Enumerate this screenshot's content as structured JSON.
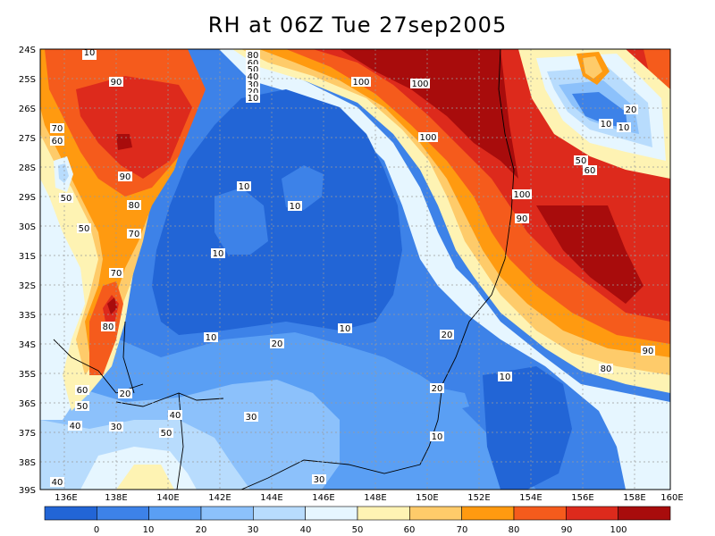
{
  "title": "RH at 06Z Tue 27sep2005",
  "map": {
    "lat_labels": [
      "24S",
      "25S",
      "26S",
      "27S",
      "28S",
      "29S",
      "30S",
      "31S",
      "32S",
      "33S",
      "34S",
      "35S",
      "36S",
      "37S",
      "38S",
      "39S"
    ],
    "lon_labels": [
      "136E",
      "138E",
      "140E",
      "142E",
      "144E",
      "146E",
      "148E",
      "150E",
      "152E",
      "154E",
      "156E",
      "158E",
      "160E"
    ],
    "contour_labels": [
      {
        "text": "90"
      },
      {
        "text": "90"
      },
      {
        "text": "80"
      },
      {
        "text": "70"
      },
      {
        "text": "60"
      },
      {
        "text": "50"
      },
      {
        "text": "50"
      },
      {
        "text": "70"
      },
      {
        "text": "70"
      },
      {
        "text": "80"
      },
      {
        "text": "60"
      },
      {
        "text": "50"
      },
      {
        "text": "40"
      },
      {
        "text": "30"
      },
      {
        "text": "20"
      },
      {
        "text": "40"
      },
      {
        "text": "50"
      },
      {
        "text": "80"
      },
      {
        "text": "60"
      },
      {
        "text": "50"
      },
      {
        "text": "40"
      },
      {
        "text": "30"
      },
      {
        "text": "20"
      },
      {
        "text": "10"
      },
      {
        "text": "100"
      },
      {
        "text": "100"
      },
      {
        "text": "100"
      },
      {
        "text": "100"
      },
      {
        "text": "90"
      },
      {
        "text": "10"
      },
      {
        "text": "10"
      },
      {
        "text": "20"
      },
      {
        "text": "60"
      },
      {
        "text": "50"
      },
      {
        "text": "10"
      },
      {
        "text": "10"
      },
      {
        "text": "10"
      },
      {
        "text": "10"
      },
      {
        "text": "10"
      },
      {
        "text": "20"
      },
      {
        "text": "20"
      },
      {
        "text": "10"
      },
      {
        "text": "10"
      },
      {
        "text": "30"
      },
      {
        "text": "30"
      },
      {
        "text": "80"
      },
      {
        "text": "90"
      },
      {
        "text": "40"
      },
      {
        "text": "20"
      },
      {
        "text": "10"
      }
    ]
  },
  "colorbar": {
    "labels": [
      "0",
      "10",
      "20",
      "30",
      "40",
      "50",
      "60",
      "70",
      "80",
      "90",
      "100"
    ],
    "colors": [
      "#2265d6",
      "#3d82e8",
      "#5a9ff4",
      "#8cc1fb",
      "#b8dcfd",
      "#e6f6ff",
      "#fef3b3",
      "#fecb6a",
      "#ff9a10",
      "#f55b1c",
      "#dd2a1c",
      "#a80c0c"
    ]
  }
}
